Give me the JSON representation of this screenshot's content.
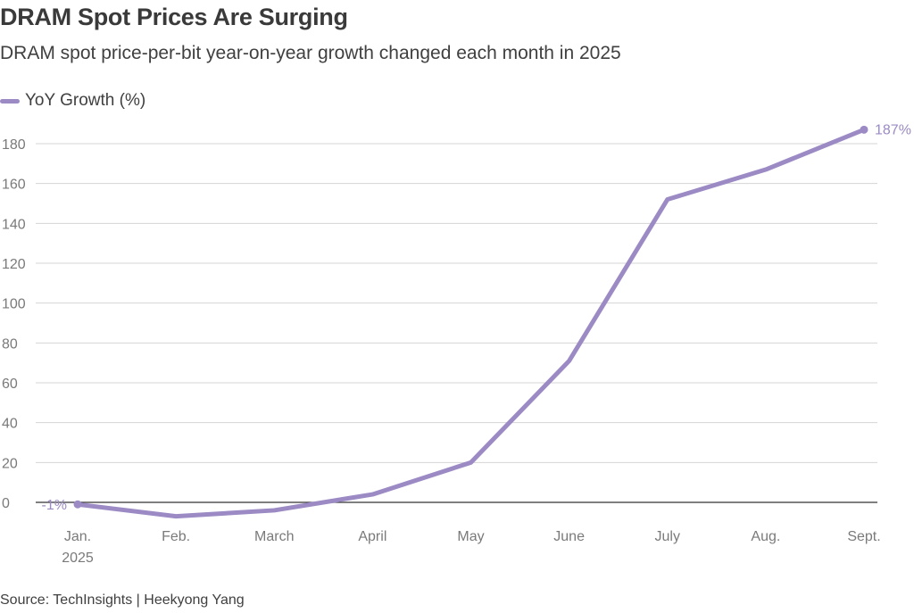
{
  "header": {
    "title": "DRAM Spot Prices Are Surging",
    "subtitle": "DRAM spot price-per-bit year-on-year growth changed each month in 2025"
  },
  "footer": {
    "source": "Source: TechInsights | Heekyong Yang"
  },
  "colors": {
    "series": "#9b8ac4",
    "grid": "#d4d4d4",
    "zero_line": "#333333"
  },
  "chart_data": {
    "type": "line",
    "title": "DRAM Spot Prices Are Surging",
    "subtitle": "DRAM spot price-per-bit year-on-year growth changed each month in 2025",
    "categories": [
      "Jan.",
      "Feb.",
      "March",
      "April",
      "May",
      "June",
      "July",
      "Aug.",
      "Sept."
    ],
    "x_sublabel": {
      "index": 0,
      "text": "2025"
    },
    "series": [
      {
        "name": "YoY Growth (%)",
        "values": [
          -1,
          -7,
          -4,
          4,
          20,
          71,
          152,
          167,
          187
        ]
      }
    ],
    "data_labels": [
      {
        "index": 0,
        "text": "-1%"
      },
      {
        "index": 8,
        "text": "187%"
      }
    ],
    "yticks": [
      0,
      20,
      40,
      60,
      80,
      100,
      120,
      140,
      160,
      180
    ],
    "ylim": [
      -10,
      190
    ],
    "grid": true,
    "legend": "top-left"
  }
}
